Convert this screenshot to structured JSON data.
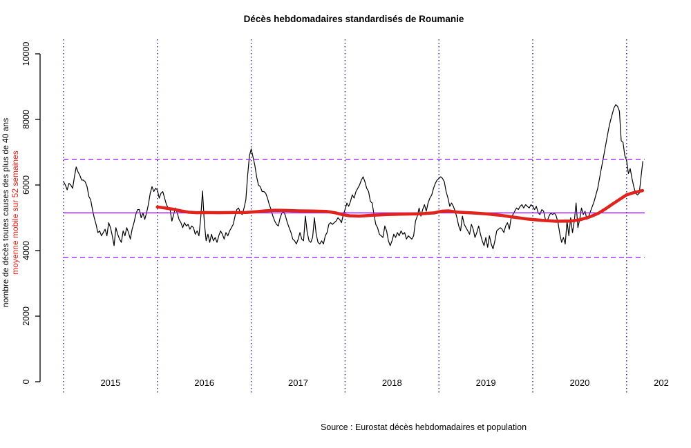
{
  "figure": {
    "title": "Décès hebdomadaires standardisés de Roumanie",
    "caption": "Source : Eurostat décès hebdomadaires et population",
    "ylabel_primary": "nombre de décès toutes causes des plus de 40 ans",
    "ylabel_secondary": "moyenne mobile sur 52 semaines"
  },
  "colors": {
    "weekly_line": "#000000",
    "moving_average_line": "#e0231c",
    "reference_lines": "#a020f0",
    "year_gridlines": "#20208f",
    "background": "#ffffff",
    "text": "#000000"
  },
  "chart_data": {
    "type": "line",
    "title": "Décès hebdomadaires standardisés de Roumanie",
    "caption": "Source : Eurostat décès hebdomadaires et population",
    "xlabel": "",
    "ylabel": "nombre de décès toutes causes des plus de 40 ans / moyenne mobile sur 52 semaines",
    "ylim": [
      0,
      10000
    ],
    "xlim": [
      2014.75,
      2021.6
    ],
    "grid": "vertical-dotted-per-year",
    "legend_position": "none",
    "y_ticks": [
      0,
      2000,
      4000,
      6000,
      8000,
      10000
    ],
    "x_tick_labels": [
      "2015",
      "2016",
      "2017",
      "2018",
      "2019",
      "2020",
      "202"
    ],
    "year_gridlines": [
      2015,
      2016,
      2017,
      2018,
      2019,
      2020,
      2021
    ],
    "reference_lines": {
      "mean": 5150,
      "upper_band": 6780,
      "lower_band": 3790,
      "span_years": [
        2015.0,
        2021.192
      ]
    },
    "series": [
      {
        "name": "décès hebdomadaires toutes causes des plus de 40 ans",
        "style": "thin-black-line",
        "start_year": 2015,
        "points_per_year": 52,
        "values": [
          6100,
          6000,
          5850,
          6050,
          6000,
          5900,
          6250,
          6550,
          6400,
          6300,
          6150,
          6150,
          6100,
          5950,
          5650,
          5550,
          5250,
          5000,
          4800,
          4550,
          4600,
          4450,
          4550,
          4650,
          4450,
          4850,
          4700,
          4450,
          4150,
          4700,
          4500,
          4350,
          4250,
          4600,
          4450,
          4700,
          4550,
          4350,
          4650,
          4850,
          5100,
          5250,
          5250,
          5000,
          5150,
          4950,
          5150,
          5400,
          5750,
          5950,
          5800,
          5900,
          5850,
          5600,
          5750,
          5800,
          5600,
          5400,
          5300,
          5250,
          4900,
          5100,
          5300,
          5150,
          4950,
          4850,
          4700,
          4850,
          4750,
          4800,
          4650,
          4750,
          4700,
          4500,
          4600,
          4450,
          5000,
          5820,
          4850,
          4300,
          4500,
          4250,
          4500,
          4300,
          4400,
          4250,
          4450,
          4600,
          4500,
          4350,
          4550,
          4450,
          4600,
          4700,
          4800,
          5050,
          5250,
          5300,
          5150,
          5100,
          5300,
          5550,
          6300,
          6900,
          7100,
          6850,
          6600,
          6250,
          6000,
          5950,
          5800,
          5800,
          5750,
          5600,
          5400,
          5250,
          5050,
          4900,
          4800,
          4750,
          5000,
          5150,
          5200,
          5050,
          4850,
          4700,
          4550,
          4350,
          4300,
          4200,
          4350,
          4550,
          4350,
          4300,
          5050,
          4550,
          4300,
          4250,
          4400,
          5000,
          4500,
          4250,
          4200,
          4300,
          4200,
          4450,
          4550,
          4800,
          4850,
          4800,
          4850,
          4900,
          5000,
          4950,
          4850,
          5100,
          5250,
          5450,
          5350,
          5500,
          5700,
          5600,
          5800,
          5900,
          6000,
          6150,
          6250,
          6100,
          5900,
          5800,
          5500,
          5450,
          5100,
          4800,
          4700,
          4500,
          4450,
          4400,
          4750,
          4600,
          4300,
          4150,
          4300,
          4500,
          4400,
          4550,
          4450,
          4600,
          4500,
          4550,
          4350,
          4450,
          4400,
          4350,
          4450,
          4900,
          5050,
          5300,
          5050,
          5250,
          5400,
          5200,
          5450,
          5600,
          5700,
          5900,
          6050,
          6150,
          6200,
          6250,
          6200,
          6100,
          5800,
          5600,
          5350,
          5450,
          5350,
          5200,
          5000,
          4750,
          4600,
          5050,
          4800,
          4700,
          4600,
          4500,
          4800,
          4650,
          4400,
          4550,
          4750,
          4500,
          4300,
          4150,
          4400,
          4100,
          4450,
          4200,
          4050,
          4300,
          4600,
          4650,
          4700,
          4650,
          4550,
          4750,
          4850,
          4650,
          5000,
          5100,
          5200,
          5300,
          5250,
          5350,
          5400,
          5300,
          5400,
          5350,
          5300,
          5400,
          5350,
          5250,
          5350,
          5150,
          5100,
          5250,
          5200,
          4950,
          4900,
          5050,
          5150,
          5100,
          5150,
          5050,
          4850,
          4500,
          4250,
          4400,
          4200,
          4900,
          4450,
          5000,
          4550,
          4900,
          5450,
          4700,
          4950,
          5300,
          5100,
          5200,
          4950,
          5050,
          5200,
          5350,
          5500,
          5700,
          5900,
          6200,
          6500,
          6800,
          7100,
          7400,
          7700,
          7950,
          8150,
          8350,
          8450,
          8400,
          8250,
          7350,
          7300,
          6900,
          6750,
          6350,
          6500,
          6200,
          5950,
          5750,
          5700,
          5750,
          6250,
          6730
        ]
      },
      {
        "name": "moyenne mobile sur 52 semaines",
        "style": "thick-red-line",
        "points": [
          [
            2016.0,
            5330
          ],
          [
            2016.08,
            5300
          ],
          [
            2016.17,
            5260
          ],
          [
            2016.25,
            5210
          ],
          [
            2016.33,
            5170
          ],
          [
            2016.42,
            5155
          ],
          [
            2016.5,
            5160
          ],
          [
            2016.65,
            5155
          ],
          [
            2016.8,
            5160
          ],
          [
            2016.95,
            5165
          ],
          [
            2017.05,
            5185
          ],
          [
            2017.15,
            5210
          ],
          [
            2017.25,
            5230
          ],
          [
            2017.35,
            5225
          ],
          [
            2017.5,
            5210
          ],
          [
            2017.65,
            5205
          ],
          [
            2017.8,
            5195
          ],
          [
            2017.9,
            5150
          ],
          [
            2017.97,
            5100
          ],
          [
            2018.05,
            5060
          ],
          [
            2018.15,
            5050
          ],
          [
            2018.3,
            5080
          ],
          [
            2018.45,
            5100
          ],
          [
            2018.6,
            5110
          ],
          [
            2018.8,
            5120
          ],
          [
            2018.95,
            5150
          ],
          [
            2019.03,
            5200
          ],
          [
            2019.1,
            5210
          ],
          [
            2019.2,
            5170
          ],
          [
            2019.35,
            5150
          ],
          [
            2019.5,
            5120
          ],
          [
            2019.65,
            5080
          ],
          [
            2019.8,
            5020
          ],
          [
            2019.95,
            4960
          ],
          [
            2020.1,
            4920
          ],
          [
            2020.25,
            4895
          ],
          [
            2020.4,
            4900
          ],
          [
            2020.5,
            4940
          ],
          [
            2020.6,
            5020
          ],
          [
            2020.7,
            5140
          ],
          [
            2020.78,
            5280
          ],
          [
            2020.85,
            5420
          ],
          [
            2020.92,
            5550
          ],
          [
            2021.0,
            5700
          ],
          [
            2021.08,
            5770
          ],
          [
            2021.17,
            5830
          ]
        ]
      }
    ]
  }
}
